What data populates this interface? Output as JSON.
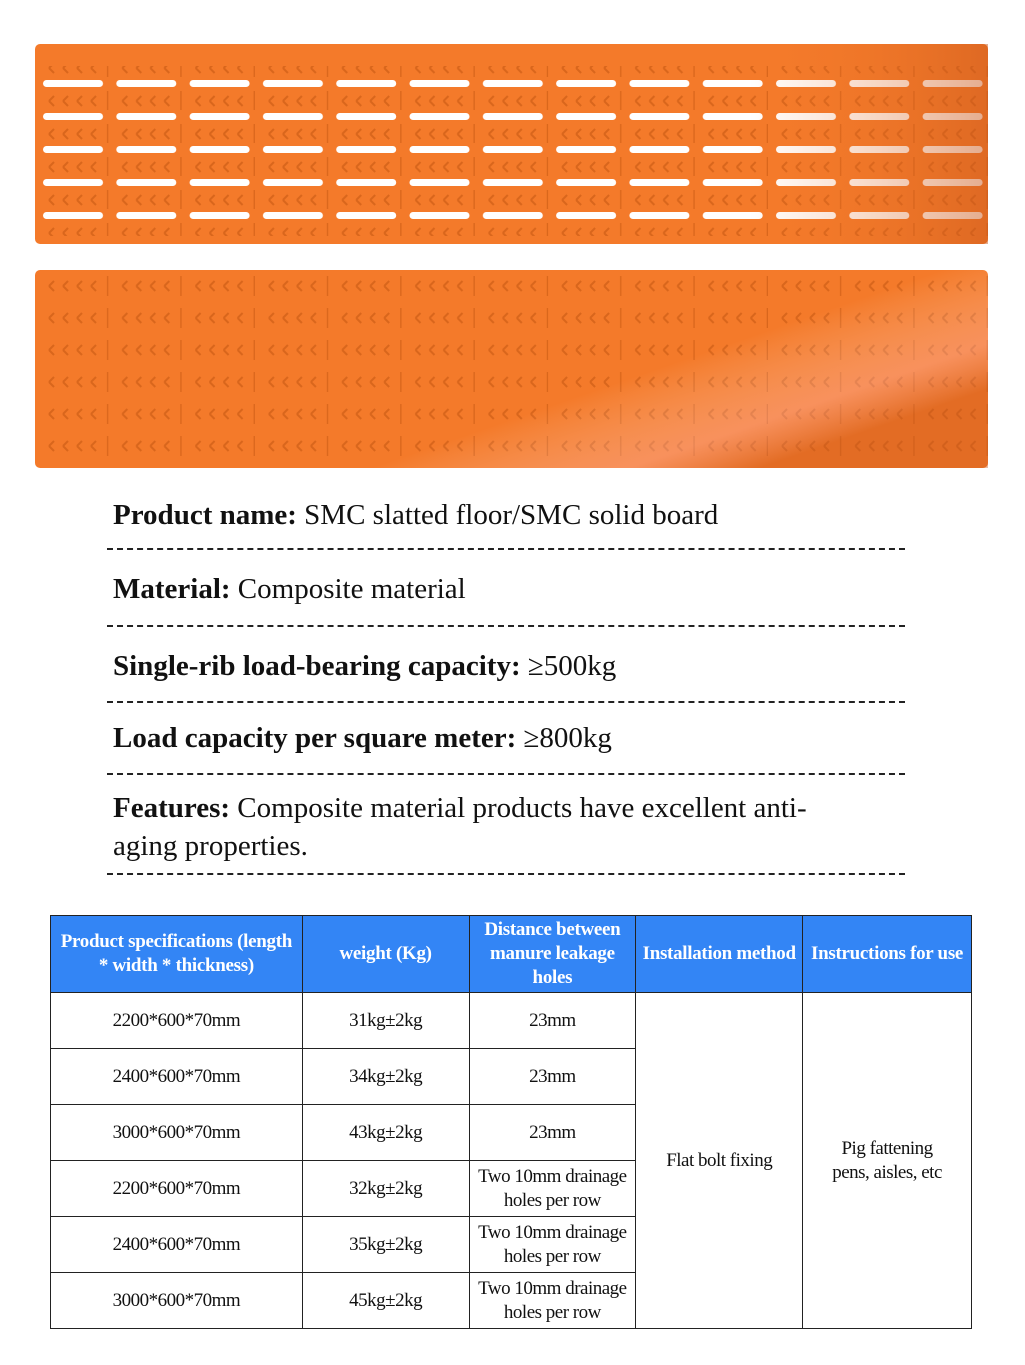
{
  "colors": {
    "board": "#f47a2a",
    "header_bg": "#3385f5",
    "header_text": "#ffffff"
  },
  "images": [
    {
      "name": "smc-slatted-floor",
      "type": "slatted"
    },
    {
      "name": "smc-solid-board",
      "type": "solid"
    }
  ],
  "specs": [
    {
      "label": "Product name:",
      "value": " SMC slatted floor/SMC solid board"
    },
    {
      "label": "Material:",
      "value": " Composite material"
    },
    {
      "label": "Single-rib load-bearing capacity:",
      "value": " ≥500kg"
    },
    {
      "label": "Load capacity per square meter:",
      "value": " ≥800kg"
    },
    {
      "label": "Features:",
      "value": " Composite material products have excellent anti-aging properties."
    }
  ],
  "table": {
    "headers": [
      "Product specifications (length * width * thickness)",
      "weight (Kg)",
      "Distance between manure leakage holes",
      "Installation method",
      "Instructions for use"
    ],
    "rows": [
      [
        "2200*600*70mm",
        "31kg±2kg",
        "23mm"
      ],
      [
        "2400*600*70mm",
        "34kg±2kg",
        "23mm"
      ],
      [
        "3000*600*70mm",
        "43kg±2kg",
        "23mm"
      ],
      [
        "2200*600*70mm",
        "32kg±2kg",
        "Two 10mm drainage holes per row"
      ],
      [
        "2400*600*70mm",
        "35kg±2kg",
        "Two 10mm drainage holes per row"
      ],
      [
        "3000*600*70mm",
        "45kg±2kg",
        "Two 10mm drainage holes per row"
      ]
    ],
    "installation_method": "Flat bolt fixing",
    "instructions_for_use": "Pig fattening pens, aisles, etc"
  }
}
